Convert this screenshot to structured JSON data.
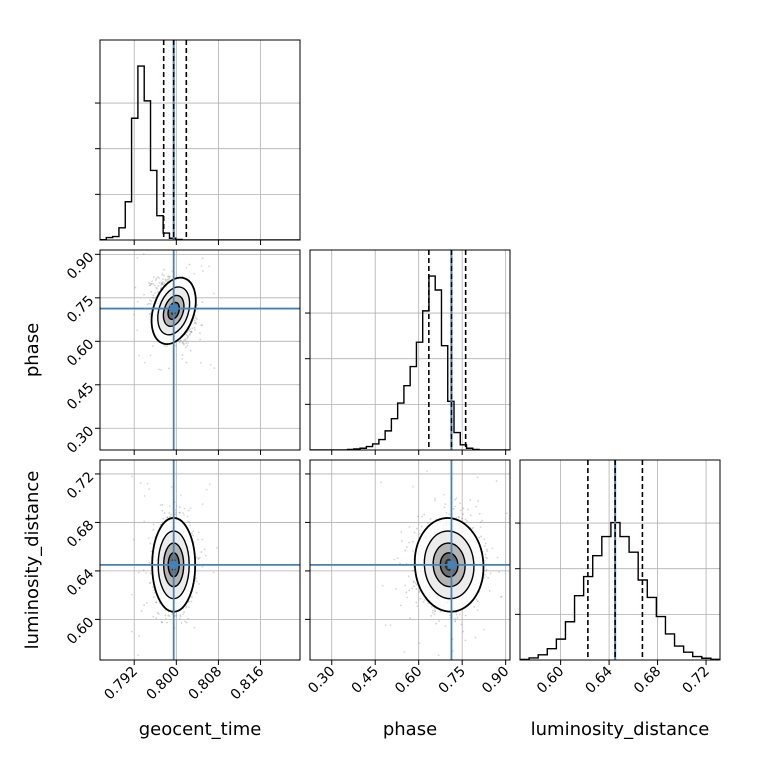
{
  "chart_data": {
    "type": "corner",
    "parameters": [
      {
        "name": "geocent_time",
        "xlabel": "geocent_time",
        "range": [
          0.7855,
          0.8235
        ],
        "ticks": [
          0.792,
          0.8,
          0.808,
          0.816
        ],
        "tick_labels": [
          "0.792",
          "0.800",
          "0.808",
          "0.816"
        ],
        "truth": 0.7995,
        "quantiles": [
          0.7976,
          0.7995,
          0.8019
        ],
        "hist": {
          "bin_width": 0.0012,
          "start": 0.7855,
          "counts": [
            0.2,
            1.4,
            2.0,
            7.0,
            22.0,
            70.0,
            100.0,
            80.0,
            40.0,
            14.0,
            4.0,
            1.0,
            0.3,
            0,
            0,
            0,
            0,
            0,
            0,
            0,
            0,
            0,
            0,
            0,
            0,
            0,
            0,
            0,
            0,
            0,
            0,
            0
          ]
        }
      },
      {
        "name": "phase",
        "xlabel": "phase",
        "ylabel": "phase",
        "range": [
          0.225,
          0.915
        ],
        "ticks": [
          0.3,
          0.45,
          0.6,
          0.75,
          0.9
        ],
        "tick_labels": [
          "0.30",
          "0.45",
          "0.60",
          "0.75",
          "0.90"
        ],
        "truth": 0.713,
        "quantiles": [
          0.635,
          0.713,
          0.762
        ],
        "hist": {
          "bin_width": 0.0216,
          "start": 0.225,
          "counts": [
            0,
            0,
            0,
            0,
            0,
            0,
            0.3,
            0.6,
            1.0,
            2.0,
            3.5,
            6.0,
            11.0,
            18.0,
            27.0,
            37.0,
            48.0,
            62.0,
            80.0,
            100.0,
            92.0,
            60.0,
            28.0,
            10.0,
            3.0,
            1.0,
            0.3,
            0,
            0,
            0,
            0,
            0
          ]
        }
      },
      {
        "name": "luminosity_distance",
        "xlabel": "luminosity_distance",
        "ylabel": "luminosity_distance",
        "range": [
          0.5665,
          0.7315
        ],
        "ticks": [
          0.6,
          0.64,
          0.68,
          0.72
        ],
        "tick_labels": [
          "0.60",
          "0.64",
          "0.68",
          "0.72"
        ],
        "truth": 0.645,
        "quantiles": [
          0.6225,
          0.645,
          0.6675
        ],
        "hist": {
          "bin_width": 0.0075,
          "start": 0.5665,
          "counts": [
            0.3,
            1.2,
            3.0,
            6.5,
            12.0,
            22.0,
            37.0,
            48.0,
            60.0,
            71.0,
            79.0,
            71.0,
            62.0,
            46.0,
            36.0,
            25.0,
            15.0,
            8.0,
            4.5,
            2.0,
            1.0,
            0.4
          ]
        }
      }
    ],
    "pairs": [
      {
        "x": "geocent_time",
        "y": "phase",
        "center": [
          0.7995,
          0.705
        ],
        "sigma": [
          0.0018,
          0.055
        ],
        "rho": -0.25
      },
      {
        "x": "geocent_time",
        "y": "luminosity_distance",
        "center": [
          0.7995,
          0.645
        ],
        "sigma": [
          0.0019,
          0.018
        ],
        "rho": 0.0
      },
      {
        "x": "phase",
        "y": "luminosity_distance",
        "center": [
          0.705,
          0.645
        ],
        "sigma": [
          0.055,
          0.018
        ],
        "rho": 0.05
      }
    ],
    "truth_color": "#4682b4",
    "grid": true,
    "colors": {
      "line": "#000000",
      "truth": "#4682b4",
      "grid": "#b0b0b0",
      "points": "#808080"
    }
  }
}
